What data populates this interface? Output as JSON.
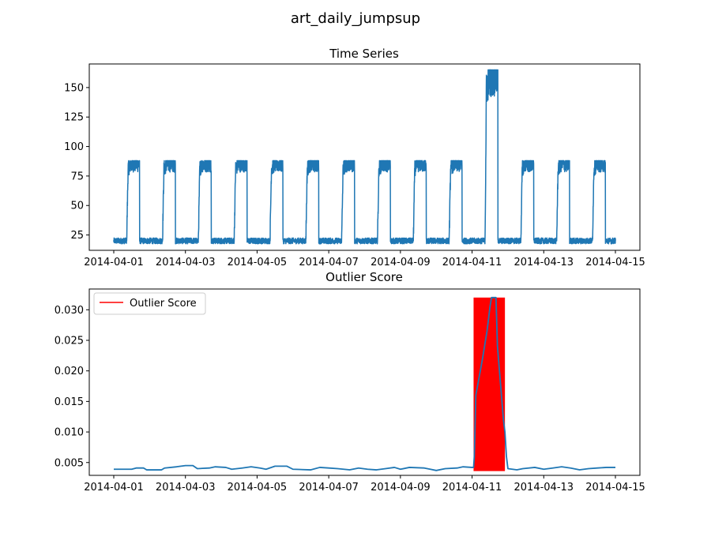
{
  "figure": {
    "suptitle": "art_daily_jumpsup"
  },
  "colors": {
    "series_line": "#1f77b4",
    "outlier_fill": "#ff0000",
    "axes_edge": "#000000",
    "background": "#ffffff"
  },
  "chart_data": [
    {
      "type": "line",
      "title": "Time Series",
      "xlabel": "",
      "ylabel": "",
      "x_range": [
        "2014-04-01",
        "2014-04-15"
      ],
      "ylim": [
        12,
        170
      ],
      "x_ticks": [
        "2014-04-01",
        "2014-04-03",
        "2014-04-05",
        "2014-04-07",
        "2014-04-09",
        "2014-04-11",
        "2014-04-13",
        "2014-04-15"
      ],
      "y_ticks": [
        25,
        50,
        75,
        100,
        125,
        150
      ],
      "grid": false,
      "pattern": {
        "description": "daily square-wave: low ~20 outside business hours, high ~75-88 during business hours; jump up to ~140-165 on 2014-04-11",
        "baseline": 20,
        "noise": 2.5,
        "days": [
          {
            "date": "2014-04-01",
            "start": 0.36,
            "end": 0.72,
            "level": [
              73,
              88
            ]
          },
          {
            "date": "2014-04-02",
            "start": 0.36,
            "end": 0.72,
            "level": [
              73,
              88
            ]
          },
          {
            "date": "2014-04-03",
            "start": 0.36,
            "end": 0.72,
            "level": [
              73,
              88
            ]
          },
          {
            "date": "2014-04-04",
            "start": 0.36,
            "end": 0.72,
            "level": [
              73,
              88
            ]
          },
          {
            "date": "2014-04-05",
            "start": 0.36,
            "end": 0.72,
            "level": [
              73,
              88
            ]
          },
          {
            "date": "2014-04-06",
            "start": 0.36,
            "end": 0.72,
            "level": [
              73,
              88
            ]
          },
          {
            "date": "2014-04-07",
            "start": 0.36,
            "end": 0.72,
            "level": [
              73,
              88
            ]
          },
          {
            "date": "2014-04-08",
            "start": 0.36,
            "end": 0.72,
            "level": [
              73,
              88
            ]
          },
          {
            "date": "2014-04-09",
            "start": 0.36,
            "end": 0.72,
            "level": [
              73,
              88
            ]
          },
          {
            "date": "2014-04-10",
            "start": 0.36,
            "end": 0.72,
            "level": [
              73,
              88
            ]
          },
          {
            "date": "2014-04-11",
            "start": 0.36,
            "end": 0.72,
            "level": [
              130,
              165
            ]
          },
          {
            "date": "2014-04-12",
            "start": 0.36,
            "end": 0.72,
            "level": [
              73,
              88
            ]
          },
          {
            "date": "2014-04-13",
            "start": 0.36,
            "end": 0.72,
            "level": [
              73,
              88
            ]
          },
          {
            "date": "2014-04-14",
            "start": 0.36,
            "end": 0.72,
            "level": [
              73,
              88
            ]
          }
        ]
      }
    },
    {
      "type": "line",
      "title": "Outlier Score",
      "xlabel": "",
      "ylabel": "",
      "x_range": [
        "2014-04-01",
        "2014-04-15"
      ],
      "ylim": [
        0.0029,
        0.0334
      ],
      "x_ticks": [
        "2014-04-01",
        "2014-04-03",
        "2014-04-05",
        "2014-04-07",
        "2014-04-09",
        "2014-04-11",
        "2014-04-13",
        "2014-04-15"
      ],
      "y_ticks": [
        0.005,
        0.01,
        0.015,
        0.02,
        0.025,
        0.03
      ],
      "grid": false,
      "legend": {
        "entries": [
          "Outlier Score"
        ],
        "placement": "upper-left"
      },
      "outlier_region": {
        "x_start": "2014-04-11 01:00",
        "x_end": "2014-04-11 22:00",
        "y_min": 0.0036,
        "y_max": 0.032,
        "label": "Outlier Score"
      },
      "series": [
        {
          "points": [
            [
              "2014-04-01 00:00",
              0.0039
            ],
            [
              "2014-04-01 12:00",
              0.0039
            ],
            [
              "2014-04-01 15:00",
              0.0041
            ],
            [
              "2014-04-01 20:00",
              0.0041
            ],
            [
              "2014-04-01 22:00",
              0.0038
            ],
            [
              "2014-04-02 08:00",
              0.0038
            ],
            [
              "2014-04-02 10:00",
              0.0041
            ],
            [
              "2014-04-02 18:00",
              0.0043
            ],
            [
              "2014-04-03 00:00",
              0.0045
            ],
            [
              "2014-04-03 05:00",
              0.0045
            ],
            [
              "2014-04-03 08:00",
              0.004
            ],
            [
              "2014-04-03 16:00",
              0.0041
            ],
            [
              "2014-04-03 20:00",
              0.0043
            ],
            [
              "2014-04-04 03:00",
              0.0042
            ],
            [
              "2014-04-04 07:00",
              0.0039
            ],
            [
              "2014-04-04 14:00",
              0.0041
            ],
            [
              "2014-04-04 20:00",
              0.0043
            ],
            [
              "2014-04-05 02:00",
              0.0041
            ],
            [
              "2014-04-05 06:00",
              0.0039
            ],
            [
              "2014-04-05 12:00",
              0.0044
            ],
            [
              "2014-04-05 20:00",
              0.0044
            ],
            [
              "2014-04-06 00:00",
              0.0039
            ],
            [
              "2014-04-06 12:00",
              0.0038
            ],
            [
              "2014-04-06 18:00",
              0.0042
            ],
            [
              "2014-04-07 00:00",
              0.0041
            ],
            [
              "2014-04-07 06:00",
              0.004
            ],
            [
              "2014-04-07 14:00",
              0.0038
            ],
            [
              "2014-04-07 20:00",
              0.0041
            ],
            [
              "2014-04-08 02:00",
              0.0039
            ],
            [
              "2014-04-08 08:00",
              0.0038
            ],
            [
              "2014-04-08 14:00",
              0.004
            ],
            [
              "2014-04-08 20:00",
              0.0042
            ],
            [
              "2014-04-09 00:00",
              0.0039
            ],
            [
              "2014-04-09 06:00",
              0.0042
            ],
            [
              "2014-04-09 16:00",
              0.0041
            ],
            [
              "2014-04-09 20:00",
              0.0039
            ],
            [
              "2014-04-10 00:00",
              0.0037
            ],
            [
              "2014-04-10 06:00",
              0.004
            ],
            [
              "2014-04-10 14:00",
              0.0041
            ],
            [
              "2014-04-10 18:00",
              0.0043
            ],
            [
              "2014-04-11 00:00",
              0.0042
            ],
            [
              "2014-04-11 01:00",
              0.0042
            ],
            [
              "2014-04-11 01:30",
              0.006
            ],
            [
              "2014-04-11 02:30",
              0.016
            ],
            [
              "2014-04-11 04:00",
              0.018
            ],
            [
              "2014-04-11 07:00",
              0.022
            ],
            [
              "2014-04-11 10:00",
              0.0265
            ],
            [
              "2014-04-11 12:00",
              0.0305
            ],
            [
              "2014-04-11 13:00",
              0.032
            ],
            [
              "2014-04-11 15:00",
              0.032
            ],
            [
              "2014-04-11 16:00",
              0.032
            ],
            [
              "2014-04-11 17:00",
              0.024
            ],
            [
              "2014-04-11 19:00",
              0.018
            ],
            [
              "2014-04-11 21:00",
              0.012
            ],
            [
              "2014-04-11 22:00",
              0.01
            ],
            [
              "2014-04-11 23:00",
              0.006
            ],
            [
              "2014-04-12 00:00",
              0.004
            ],
            [
              "2014-04-12 06:00",
              0.0038
            ],
            [
              "2014-04-12 10:00",
              0.004
            ],
            [
              "2014-04-12 18:00",
              0.0042
            ],
            [
              "2014-04-13 00:00",
              0.0039
            ],
            [
              "2014-04-13 06:00",
              0.0041
            ],
            [
              "2014-04-13 12:00",
              0.0043
            ],
            [
              "2014-04-13 18:00",
              0.0041
            ],
            [
              "2014-04-14 00:00",
              0.0038
            ],
            [
              "2014-04-14 06:00",
              0.004
            ],
            [
              "2014-04-14 12:00",
              0.0041
            ],
            [
              "2014-04-14 18:00",
              0.0042
            ],
            [
              "2014-04-15 00:00",
              0.0042
            ]
          ]
        }
      ]
    }
  ]
}
